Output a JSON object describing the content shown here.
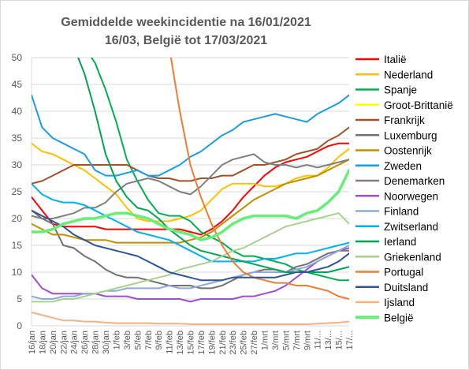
{
  "chart_data": {
    "type": "line",
    "title_line1": "Gemiddelde weekincidentie  na 16/01/2021",
    "title_line2": "16/03, België tot 17/03/2021",
    "xlabel": "",
    "ylabel": "",
    "ylim": [
      0,
      50
    ],
    "yticks": [
      0,
      5,
      10,
      15,
      20,
      25,
      30,
      35,
      40,
      45,
      50
    ],
    "grid": true,
    "legend_position": "right",
    "x": [
      "16/jan",
      "18/jan",
      "20/jan",
      "22/jan",
      "24/jan",
      "26/jan",
      "28/jan",
      "30/jan",
      "1/feb",
      "3/feb",
      "5/feb",
      "7/feb",
      "9/feb",
      "11/feb",
      "13/feb",
      "15/feb",
      "17/feb",
      "19/feb",
      "21/feb",
      "23/feb",
      "25/feb",
      "27/feb",
      "1/mrt",
      "3/mrt",
      "5/mrt",
      "7/mrt",
      "9/mrt",
      "11/...",
      "13/...",
      "15/...",
      "17/..."
    ],
    "series": [
      {
        "name": "Italië",
        "color": "#ff0000",
        "width": 2,
        "values": [
          24,
          21.5,
          19,
          18.5,
          18.5,
          18.5,
          18.5,
          18,
          18,
          18,
          18,
          18,
          18,
          18,
          18,
          17.5,
          17,
          18,
          19.5,
          21.5,
          24,
          26,
          28,
          29.5,
          30.5,
          31,
          31.5,
          32.5,
          33.5,
          34,
          34
        ]
      },
      {
        "name": "Nederland",
        "color": "#ffc000",
        "width": 2,
        "values": [
          34,
          32.5,
          32,
          31,
          30,
          29,
          27.5,
          26,
          24.5,
          22,
          20,
          19.5,
          19.5,
          19.5,
          20,
          20.5,
          21.5,
          23.5,
          25.5,
          26.5,
          26.5,
          26.5,
          26,
          26,
          26.5,
          27.5,
          28,
          28,
          29.5,
          31.5,
          33
        ]
      },
      {
        "name": "Spanje",
        "color": "#00b050",
        "width": 2,
        "values": [
          null,
          null,
          null,
          null,
          null,
          52,
          49,
          44,
          38,
          31,
          27,
          23.5,
          21,
          20.5,
          20.5,
          19.5,
          17.5,
          16.5,
          15.5,
          14,
          13,
          13,
          12.5,
          12,
          11.5,
          10.5,
          10,
          9.5,
          9,
          8.5,
          8.5
        ]
      },
      {
        "name": "Groot-Brittanië",
        "color": "#ffff00",
        "width": 2,
        "values": [
          null,
          null,
          null,
          null,
          null,
          null,
          null,
          null,
          null,
          null,
          null,
          null,
          null,
          null,
          null,
          null,
          null,
          null,
          null,
          null,
          null,
          null,
          null,
          null,
          null,
          null,
          null,
          null,
          null,
          null,
          null
        ]
      },
      {
        "name": "Frankrijk",
        "color": "#a0522d",
        "width": 2,
        "values": [
          26.5,
          27,
          28,
          29,
          30,
          30,
          30,
          30,
          30,
          30,
          29,
          28,
          27.5,
          27.5,
          27,
          27,
          27.5,
          27.5,
          28,
          28,
          29,
          30,
          30,
          30.5,
          31,
          32,
          32.5,
          33,
          34.5,
          35.5,
          37
        ]
      },
      {
        "name": "Luxemburg",
        "color": "#767171",
        "width": 2,
        "values": [
          21.5,
          20,
          19,
          15,
          14.5,
          13,
          12,
          10.5,
          9.5,
          9,
          9,
          8.5,
          8,
          7.5,
          7.5,
          7.5,
          7,
          7,
          7.5,
          8.5,
          9.5,
          10,
          10.5,
          10.5,
          10,
          11,
          11.5,
          12.5,
          13.5,
          14,
          14
        ]
      },
      {
        "name": "Oostenrijk",
        "color": "#bf8f00",
        "width": 2,
        "values": [
          19,
          18,
          17,
          17,
          16.5,
          16,
          16,
          16,
          15.5,
          15.5,
          15.5,
          15.5,
          15.5,
          15.5,
          15.5,
          16,
          16.5,
          17.5,
          19,
          20.5,
          22,
          23.5,
          24.5,
          25.5,
          26.5,
          27,
          27.5,
          28,
          29,
          30,
          31
        ]
      },
      {
        "name": "Zweden",
        "color": "#1b9ddf",
        "width": 2,
        "values": [
          43,
          37,
          35,
          34,
          33,
          32,
          29,
          28,
          28,
          28.5,
          29,
          28,
          28,
          29,
          30,
          31.5,
          32.5,
          34,
          35.5,
          36.5,
          38,
          38.5,
          39,
          39.5,
          39,
          38.5,
          38,
          39.5,
          40.5,
          41.5,
          43
        ]
      },
      {
        "name": "Denemarken",
        "color": "#7f7f7f",
        "width": 2,
        "values": [
          20.5,
          20,
          20,
          20.5,
          21,
          22,
          22,
          23,
          25,
          26.5,
          27,
          27.5,
          27,
          26,
          25,
          24.5,
          26,
          28,
          30,
          31,
          31.5,
          32,
          30.5,
          30,
          30,
          29.5,
          30,
          29.5,
          30,
          30.5,
          31
        ]
      },
      {
        "name": "Noorwegen",
        "color": "#9d4fcf",
        "width": 2,
        "values": [
          9.5,
          7,
          6,
          6,
          6,
          6,
          6,
          5.5,
          5.5,
          5.5,
          5,
          5,
          5,
          5,
          5,
          4.5,
          5,
          5,
          5,
          5,
          5.5,
          5.5,
          6,
          6.5,
          7.5,
          9,
          10.5,
          12,
          13,
          14,
          14.5
        ]
      },
      {
        "name": "Finland",
        "color": "#8eaadb",
        "width": 2,
        "values": [
          5.5,
          5,
          5,
          5.5,
          5.5,
          6,
          6,
          6.5,
          6.5,
          7,
          7,
          7,
          7,
          7.5,
          7,
          7,
          7.5,
          8,
          8.5,
          9,
          9.5,
          10,
          10,
          10,
          10,
          10.5,
          11,
          12,
          13,
          14,
          15
        ]
      },
      {
        "name": "Zwitserland",
        "color": "#00b0f0",
        "width": 2,
        "values": [
          26.5,
          24.5,
          23.5,
          23,
          23,
          22.5,
          21.5,
          20.5,
          19.5,
          18.5,
          17.5,
          17,
          16.5,
          16,
          15,
          14,
          13,
          12,
          12,
          12,
          12,
          12,
          12.5,
          12.5,
          13,
          13.5,
          13.5,
          14,
          14.5,
          15,
          15.5
        ]
      },
      {
        "name": "Ierland",
        "color": "#00a550",
        "width": 2,
        "values": [
          null,
          null,
          null,
          null,
          52,
          47,
          40,
          32,
          27,
          24,
          22,
          21.5,
          20,
          18,
          16.5,
          15,
          14,
          13.5,
          13,
          12.5,
          12,
          11.5,
          11,
          10.5,
          10,
          10,
          10,
          10,
          10,
          10.5,
          11
        ]
      },
      {
        "name": "Griekenland",
        "color": "#a9d18e",
        "width": 2,
        "values": [
          4.5,
          4.5,
          4.5,
          5,
          5,
          5.5,
          6,
          6.5,
          7,
          7.5,
          8,
          8.5,
          9,
          9.5,
          10.5,
          11,
          11.5,
          12,
          13,
          14,
          14.5,
          15.5,
          16.5,
          17.5,
          18.5,
          19,
          19.5,
          20,
          20.5,
          21,
          19
        ]
      },
      {
        "name": "Portugal",
        "color": "#ed7d31",
        "width": 2,
        "values": [
          null,
          null,
          null,
          null,
          null,
          null,
          null,
          null,
          null,
          null,
          null,
          null,
          null,
          52,
          40,
          30,
          24,
          19,
          15,
          12,
          10,
          9,
          8.5,
          8,
          8,
          7.5,
          7.5,
          7,
          6.5,
          5.5,
          5
        ]
      },
      {
        "name": "Duitsland",
        "color": "#2f5597",
        "width": 2,
        "values": [
          21.5,
          20.5,
          19.5,
          18.5,
          17,
          16,
          15,
          14.5,
          14,
          13.5,
          13,
          12,
          11,
          10,
          9.5,
          9,
          8.5,
          8.5,
          8.5,
          9,
          9,
          9,
          9,
          9,
          9.5,
          10,
          10,
          10.5,
          11,
          12,
          13.5
        ]
      },
      {
        "name": "Ijsland",
        "color": "#f4b183",
        "width": 2,
        "values": [
          2.5,
          2,
          1.5,
          1,
          1,
          0.8,
          0.8,
          0.6,
          0.5,
          0.5,
          0.5,
          0.5,
          0.4,
          0.4,
          0.4,
          0.3,
          0.3,
          0.3,
          0.3,
          0.3,
          0.3,
          0.3,
          0.3,
          0.3,
          0.3,
          0.3,
          0.3,
          0.4,
          0.5,
          0.6,
          0.8
        ]
      },
      {
        "name": "België",
        "color": "#66ee77",
        "width": 3.5,
        "values": [
          17.5,
          17.5,
          18,
          19,
          19.5,
          20,
          20,
          20.5,
          21,
          21,
          20.5,
          20,
          19,
          18,
          17.5,
          17,
          16,
          16.5,
          17.5,
          19,
          20,
          20.5,
          20.5,
          20.5,
          20.5,
          20,
          21,
          21.5,
          23,
          25,
          29
        ]
      }
    ]
  }
}
